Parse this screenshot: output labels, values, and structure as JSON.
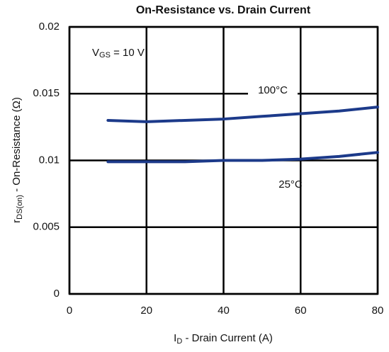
{
  "chart_data": {
    "type": "line",
    "title": "On-Resistance vs. Drain Current",
    "xlabel": {
      "main": "I",
      "sub": "D",
      "rest": " - Drain Current (A)"
    },
    "ylabel": {
      "main": "r",
      "sub": "DS(on)",
      "rest": " - On-Resistance (Ω)"
    },
    "annotation": {
      "main": "V",
      "sub": "GS",
      "rest": " = 10 V"
    },
    "x": [
      10,
      20,
      30,
      40,
      50,
      60,
      70,
      80
    ],
    "series": [
      {
        "name": "100°C",
        "color": "#1c3a8a",
        "values": [
          0.013,
          0.0129,
          0.013,
          0.0131,
          0.0133,
          0.0135,
          0.0137,
          0.014
        ]
      },
      {
        "name": "25°C",
        "color": "#1c3a8a",
        "values": [
          0.0099,
          0.0099,
          0.0099,
          0.01,
          0.01,
          0.0101,
          0.0103,
          0.0106
        ]
      }
    ],
    "xlim": [
      0,
      80
    ],
    "xticks": [
      0,
      20,
      40,
      60,
      80
    ],
    "ylim": [
      0,
      0.02
    ],
    "yticks": [
      0,
      0.005,
      0.01,
      0.015,
      0.02
    ],
    "grid": true
  }
}
